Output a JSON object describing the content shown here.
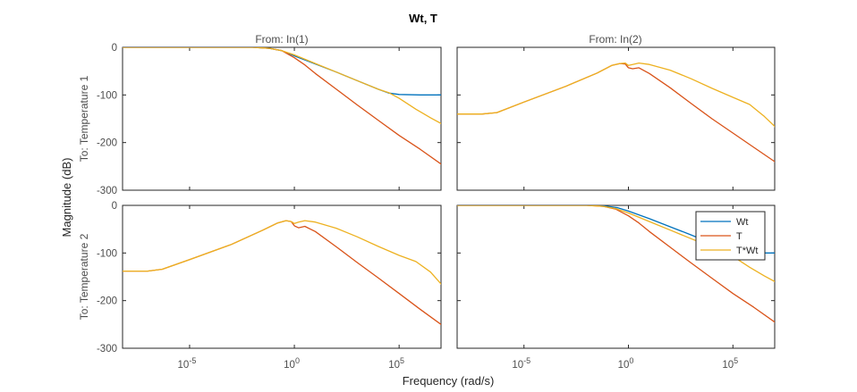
{
  "figure": {
    "title": "Wt, T",
    "xlabel": "Frequency  (rad/s)",
    "ylabel": "Magnitude (dB)"
  },
  "columns": [
    "From: In(1)",
    "From: In(2)"
  ],
  "rows": [
    "To: Temperature 1",
    "To: Temperature 2"
  ],
  "legend": {
    "placement": "upper-right of bottom-right panel",
    "entries": [
      "Wt",
      "T",
      "T*Wt"
    ]
  },
  "colors": {
    "Wt": "#0072BD",
    "T": "#D95319",
    "T*Wt": "#EDB120",
    "axes": "#262626",
    "panel_frame": "#262626"
  },
  "chart_data": {
    "type": "line",
    "x_scale": "log",
    "xlim_exponent": [
      -8.2,
      7
    ],
    "ylim": [
      -300,
      0
    ],
    "x_ticks": [
      {
        "exp": -5,
        "base": "10",
        "sup": "-5"
      },
      {
        "exp": 0,
        "base": "10",
        "sup": "0"
      },
      {
        "exp": 5,
        "base": "10",
        "sup": "5"
      }
    ],
    "y_ticks": [
      0,
      -100,
      -200,
      -300
    ],
    "grid": false,
    "panels": [
      {
        "row": 0,
        "col": 0,
        "series": [
          {
            "name": "Wt",
            "points": [
              [
                -8.2,
                0
              ],
              [
                -2,
                0
              ],
              [
                -1.2,
                -2
              ],
              [
                -0.6,
                -7
              ],
              [
                0,
                -18
              ],
              [
                1,
                -35
              ],
              [
                2,
                -52
              ],
              [
                3,
                -70
              ],
              [
                4,
                -88
              ],
              [
                4.5,
                -96
              ],
              [
                5,
                -99
              ],
              [
                6,
                -100
              ],
              [
                7,
                -100
              ]
            ]
          },
          {
            "name": "T",
            "points": [
              [
                -8.2,
                0
              ],
              [
                -2,
                0
              ],
              [
                -1.2,
                -2
              ],
              [
                -0.6,
                -7
              ],
              [
                0,
                -22
              ],
              [
                0.5,
                -37
              ],
              [
                1,
                -55
              ],
              [
                2,
                -88
              ],
              [
                3,
                -121
              ],
              [
                4,
                -153
              ],
              [
                5,
                -185
              ],
              [
                6,
                -214
              ],
              [
                7,
                -245
              ],
              [
                7.2,
                -252
              ]
            ]
          },
          {
            "name": "T*Wt",
            "points": [
              [
                -8.2,
                0
              ],
              [
                -2,
                0
              ],
              [
                -1.2,
                -2
              ],
              [
                -0.6,
                -7
              ],
              [
                0,
                -16
              ],
              [
                1,
                -34
              ],
              [
                2,
                -52
              ],
              [
                3,
                -70
              ],
              [
                4,
                -88
              ],
              [
                4.5,
                -95
              ],
              [
                5,
                -107
              ],
              [
                5.8,
                -130
              ],
              [
                6.5,
                -148
              ],
              [
                7,
                -160
              ],
              [
                7.2,
                -166
              ]
            ]
          }
        ]
      },
      {
        "row": 0,
        "col": 1,
        "series": [
          {
            "name": "Wt",
            "points": []
          },
          {
            "name": "T",
            "points": [
              [
                -8.2,
                -140
              ],
              [
                -7,
                -140
              ],
              [
                -6.3,
                -137
              ],
              [
                -5,
                -115
              ],
              [
                -3,
                -82
              ],
              [
                -1.5,
                -54
              ],
              [
                -0.8,
                -38
              ],
              [
                -0.4,
                -34
              ],
              [
                -0.15,
                -35
              ],
              [
                0,
                -43
              ],
              [
                0.2,
                -45
              ],
              [
                0.5,
                -43
              ],
              [
                1,
                -55
              ],
              [
                2,
                -85
              ],
              [
                3,
                -118
              ],
              [
                4,
                -150
              ],
              [
                5,
                -180
              ],
              [
                6,
                -210
              ],
              [
                7,
                -240
              ],
              [
                7.2,
                -249
              ]
            ]
          },
          {
            "name": "T*Wt",
            "points": [
              [
                -8.2,
                -140
              ],
              [
                -7,
                -140
              ],
              [
                -6.3,
                -137
              ],
              [
                -5,
                -115
              ],
              [
                -3,
                -82
              ],
              [
                -1.5,
                -54
              ],
              [
                -0.8,
                -38
              ],
              [
                -0.4,
                -34
              ],
              [
                -0.15,
                -33
              ],
              [
                0,
                -38
              ],
              [
                0.2,
                -36
              ],
              [
                0.5,
                -33
              ],
              [
                1,
                -36
              ],
              [
                2,
                -48
              ],
              [
                3,
                -66
              ],
              [
                4,
                -86
              ],
              [
                5,
                -105
              ],
              [
                5.8,
                -120
              ],
              [
                6.5,
                -145
              ],
              [
                7,
                -166
              ],
              [
                7.2,
                -181
              ]
            ]
          }
        ]
      },
      {
        "row": 1,
        "col": 0,
        "series": [
          {
            "name": "Wt",
            "points": []
          },
          {
            "name": "T",
            "points": [
              [
                -8.2,
                -138
              ],
              [
                -7,
                -138
              ],
              [
                -6.3,
                -134
              ],
              [
                -5,
                -114
              ],
              [
                -3,
                -82
              ],
              [
                -1.5,
                -52
              ],
              [
                -0.8,
                -37
              ],
              [
                -0.4,
                -32
              ],
              [
                -0.15,
                -34
              ],
              [
                0,
                -43
              ],
              [
                0.2,
                -47
              ],
              [
                0.5,
                -44
              ],
              [
                1,
                -55
              ],
              [
                2,
                -87
              ],
              [
                3,
                -120
              ],
              [
                4,
                -152
              ],
              [
                5,
                -185
              ],
              [
                6,
                -218
              ],
              [
                7,
                -250
              ],
              [
                7.2,
                -258
              ]
            ]
          },
          {
            "name": "T*Wt",
            "points": [
              [
                -8.2,
                -138
              ],
              [
                -7,
                -138
              ],
              [
                -6.3,
                -134
              ],
              [
                -5,
                -114
              ],
              [
                -3,
                -82
              ],
              [
                -1.5,
                -52
              ],
              [
                -0.8,
                -37
              ],
              [
                -0.4,
                -32
              ],
              [
                -0.15,
                -34
              ],
              [
                0,
                -38
              ],
              [
                0.2,
                -35
              ],
              [
                0.5,
                -32
              ],
              [
                1,
                -35
              ],
              [
                2,
                -48
              ],
              [
                3,
                -66
              ],
              [
                4,
                -86
              ],
              [
                5,
                -105
              ],
              [
                5.8,
                -118
              ],
              [
                6.5,
                -140
              ],
              [
                7,
                -165
              ],
              [
                7.2,
                -176
              ]
            ]
          }
        ]
      },
      {
        "row": 1,
        "col": 1,
        "series": [
          {
            "name": "Wt",
            "points": [
              [
                -8.2,
                0
              ],
              [
                -2,
                0
              ],
              [
                -1.2,
                -1
              ],
              [
                -0.5,
                -5
              ],
              [
                0,
                -12
              ],
              [
                1,
                -28
              ],
              [
                2,
                -45
              ],
              [
                3,
                -62
              ],
              [
                4,
                -80
              ],
              [
                4.5,
                -90
              ],
              [
                5,
                -97
              ],
              [
                6,
                -100
              ],
              [
                7,
                -100
              ]
            ]
          },
          {
            "name": "T",
            "points": [
              [
                -8.2,
                0
              ],
              [
                -2,
                0
              ],
              [
                -1.2,
                -2
              ],
              [
                -0.6,
                -8
              ],
              [
                0,
                -22
              ],
              [
                0.5,
                -37
              ],
              [
                1,
                -55
              ],
              [
                2,
                -88
              ],
              [
                3,
                -121
              ],
              [
                4,
                -153
              ],
              [
                5,
                -185
              ],
              [
                6,
                -214
              ],
              [
                7,
                -245
              ],
              [
                7.2,
                -252
              ]
            ]
          },
          {
            "name": "T*Wt",
            "points": [
              [
                -8.2,
                0
              ],
              [
                -2,
                0
              ],
              [
                -1.2,
                -2
              ],
              [
                -0.6,
                -7
              ],
              [
                0,
                -16
              ],
              [
                1,
                -34
              ],
              [
                2,
                -52
              ],
              [
                3,
                -70
              ],
              [
                4,
                -88
              ],
              [
                4.5,
                -95
              ],
              [
                5,
                -107
              ],
              [
                5.8,
                -130
              ],
              [
                6.5,
                -148
              ],
              [
                7,
                -160
              ],
              [
                7.2,
                -166
              ]
            ]
          }
        ]
      }
    ]
  }
}
